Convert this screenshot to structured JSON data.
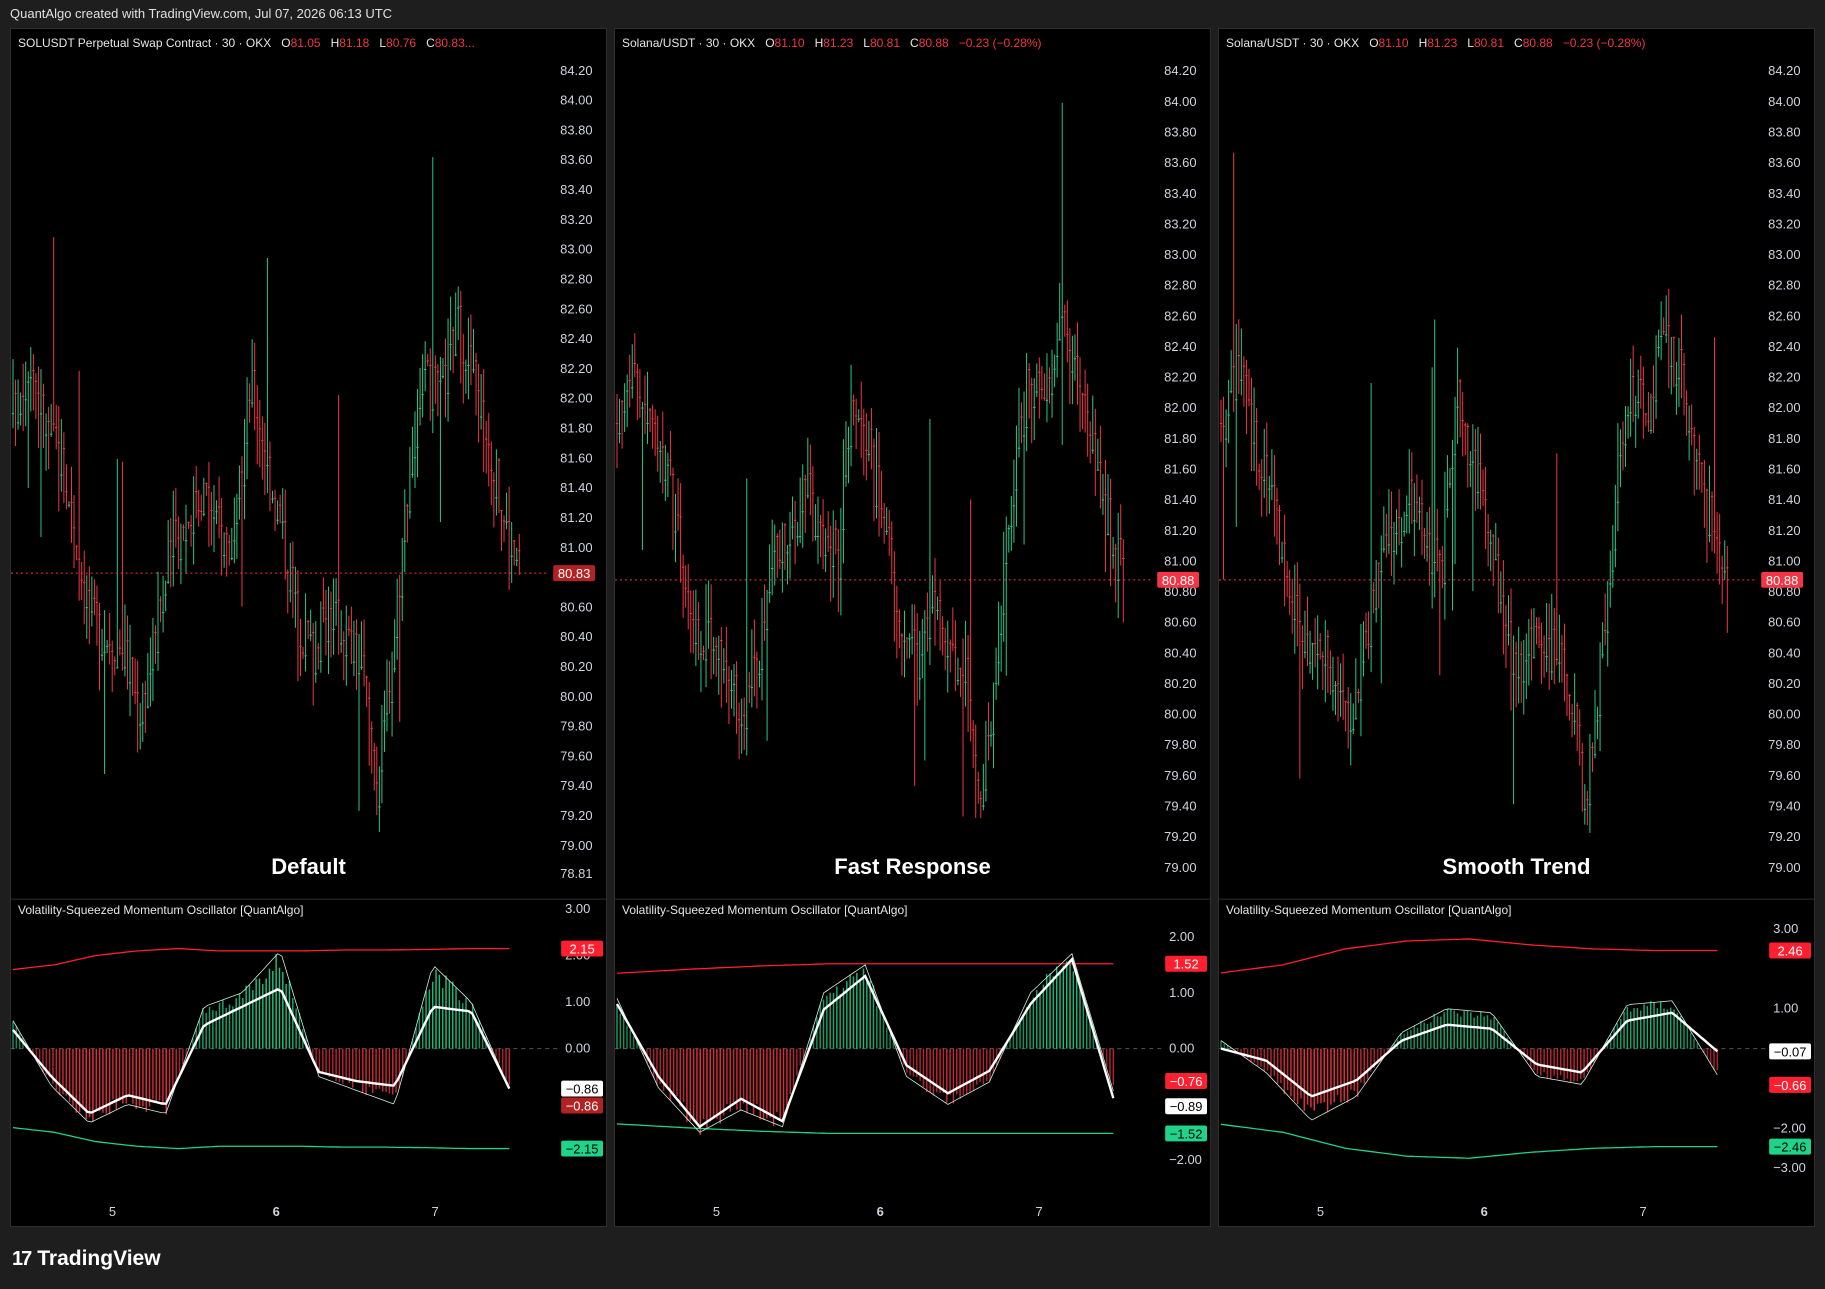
{
  "credit": "QuantAlgo created with TradingView.com, Jul 07, 2026 06:13 UTC",
  "brand": {
    "logo": "17",
    "name": "TradingView",
    "logo_icon": "tradingview-logo-icon"
  },
  "colors": {
    "up": "#26c98a",
    "down": "#f23645",
    "upper_band": "#ff1f2f",
    "lower_band": "#1fd38a",
    "signal": "#ffffff"
  },
  "time_labels": [
    "5",
    "6",
    "7"
  ],
  "panels": [
    {
      "legend": {
        "symbol": "SOLUSDT Perpetual Swap Contract · 30 · OKX",
        "o_key": "O",
        "o_val": "81.05",
        "h_key": "H",
        "h_val": "81.18",
        "l_key": "L",
        "l_val": "80.76",
        "c_key": "C",
        "c_val": "80.83...",
        "change": ""
      },
      "label": "Default",
      "osc_title": "Volatility-Squeezed Momentum Oscillator [QuantAlgo]",
      "price_ticks": [
        "84.20",
        "84.00",
        "83.80",
        "83.60",
        "83.40",
        "83.20",
        "83.00",
        "82.80",
        "82.60",
        "82.40",
        "82.20",
        "82.00",
        "81.80",
        "81.60",
        "81.40",
        "81.20",
        "81.00",
        "80.60",
        "80.40",
        "80.20",
        "80.00",
        "79.80",
        "79.60",
        "79.40",
        "79.20",
        "79.00",
        "78.81"
      ],
      "last_price": "80.83",
      "osc_ticks": [
        "3.00",
        "2.00",
        "1.00",
        "0.00",
        "-1.00",
        "-2.00"
      ],
      "osc_visible_ticks": [
        "3.00",
        "2.00",
        "1.00",
        "0.00"
      ],
      "badges": {
        "upper": "2.15",
        "signal": "−0.86",
        "hist": "−0.86",
        "lower": "−2.15"
      }
    },
    {
      "legend": {
        "symbol": "Solana/USDT · 30 · OKX",
        "o_key": "O",
        "o_val": "81.10",
        "h_key": "H",
        "h_val": "81.23",
        "l_key": "L",
        "l_val": "80.81",
        "c_key": "C",
        "c_val": "80.88",
        "change": "−0.23 (−0.28%)"
      },
      "label": "Fast Response",
      "osc_title": "Volatility-Squeezed Momentum Oscillator [QuantAlgo]",
      "price_ticks": [
        "84.20",
        "84.00",
        "83.80",
        "83.60",
        "83.40",
        "83.20",
        "83.00",
        "82.80",
        "82.60",
        "82.40",
        "82.20",
        "82.00",
        "81.80",
        "81.60",
        "81.40",
        "81.20",
        "81.00",
        "80.80",
        "80.60",
        "80.40",
        "80.20",
        "80.00",
        "79.80",
        "79.60",
        "79.40",
        "79.20",
        "79.00"
      ],
      "last_price": "80.88",
      "osc_visible_ticks": [
        "2.00",
        "1.00",
        "0.00",
        "−2.00"
      ],
      "badges": {
        "upper": "1.52",
        "hist": "−0.76",
        "signal": "−0.89",
        "lower": "−1.52"
      }
    },
    {
      "legend": {
        "symbol": "Solana/USDT · 30 · OKX",
        "o_key": "O",
        "o_val": "81.10",
        "h_key": "H",
        "h_val": "81.23",
        "l_key": "L",
        "l_val": "80.81",
        "c_key": "C",
        "c_val": "80.88",
        "change": "−0.23 (−0.28%)"
      },
      "label": "Smooth Trend",
      "osc_title": "Volatility-Squeezed Momentum Oscillator [QuantAlgo]",
      "price_ticks": [
        "84.20",
        "84.00",
        "83.80",
        "83.60",
        "83.40",
        "83.20",
        "83.00",
        "82.80",
        "82.60",
        "82.40",
        "82.20",
        "82.00",
        "81.80",
        "81.60",
        "81.40",
        "81.20",
        "81.00",
        "80.80",
        "80.60",
        "80.40",
        "80.20",
        "80.00",
        "79.80",
        "79.60",
        "79.40",
        "79.20",
        "79.00"
      ],
      "last_price": "80.88",
      "osc_visible_ticks": [
        "3.00",
        "1.00",
        "−1.00",
        "−2.00",
        "−3.00"
      ],
      "badges": {
        "upper": "2.46",
        "signal": "−0.07",
        "hist": "−0.66",
        "lower": "−2.46"
      }
    }
  ],
  "chart_data": {
    "type": "line",
    "x": [
      "5",
      "6",
      "7"
    ],
    "price_series": [
      81.9,
      82.3,
      81.8,
      81.6,
      81.0,
      80.5,
      80.4,
      80.3,
      79.9,
      80.4,
      81.0,
      81.2,
      81.4,
      81.1,
      81.0,
      82.1,
      81.6,
      81.1,
      80.5,
      80.3,
      80.6,
      80.4,
      80.2,
      79.4,
      80.3,
      81.5,
      82.1,
      82.0,
      82.5,
      82.2,
      81.7,
      81.2,
      80.8
    ],
    "oscillator_panels": [
      {
        "ylim": [
          -3,
          3
        ],
        "upper_band": [
          1.7,
          1.8,
          2.0,
          2.1,
          2.15,
          2.1,
          2.1,
          2.1,
          2.12,
          2.12,
          2.13,
          2.15,
          2.15
        ],
        "lower_band": [
          -1.7,
          -1.8,
          -2.0,
          -2.1,
          -2.15,
          -2.1,
          -2.1,
          -2.1,
          -2.12,
          -2.12,
          -2.13,
          -2.15,
          -2.15
        ],
        "signal": [
          0.4,
          -0.6,
          -1.4,
          -1.0,
          -1.2,
          0.5,
          0.9,
          1.3,
          -0.5,
          -0.7,
          -0.8,
          0.9,
          0.8,
          -0.86
        ],
        "histogram": [
          0.6,
          -0.8,
          -1.6,
          -1.2,
          -1.4,
          0.9,
          1.2,
          2.1,
          -0.6,
          -0.9,
          -1.2,
          1.8,
          1.0,
          -0.86
        ]
      },
      {
        "ylim": [
          -2.5,
          2.5
        ],
        "upper_band": [
          1.35,
          1.42,
          1.48,
          1.52,
          1.52,
          1.52,
          1.52,
          1.52
        ],
        "lower_band": [
          -1.35,
          -1.42,
          -1.48,
          -1.52,
          -1.52,
          -1.52,
          -1.52,
          -1.52
        ],
        "signal": [
          0.8,
          -0.5,
          -1.4,
          -0.9,
          -1.3,
          0.7,
          1.3,
          -0.3,
          -0.8,
          -0.4,
          0.8,
          1.6,
          -0.89
        ],
        "histogram": [
          0.9,
          -0.7,
          -1.5,
          -1.1,
          -1.4,
          1.0,
          1.5,
          -0.5,
          -1.0,
          -0.6,
          1.0,
          1.7,
          -0.76
        ]
      },
      {
        "ylim": [
          -3.5,
          3.5
        ],
        "upper_band": [
          1.9,
          2.1,
          2.5,
          2.7,
          2.75,
          2.6,
          2.5,
          2.46,
          2.46
        ],
        "lower_band": [
          -1.9,
          -2.1,
          -2.5,
          -2.7,
          -2.75,
          -2.6,
          -2.5,
          -2.46,
          -2.46
        ],
        "signal": [
          0.0,
          -0.3,
          -1.2,
          -0.8,
          0.2,
          0.6,
          0.5,
          -0.4,
          -0.6,
          0.7,
          0.9,
          -0.07
        ],
        "histogram": [
          0.2,
          -0.6,
          -1.8,
          -1.2,
          0.4,
          1.0,
          0.9,
          -0.7,
          -0.9,
          1.1,
          1.2,
          -0.66
        ]
      }
    ]
  }
}
